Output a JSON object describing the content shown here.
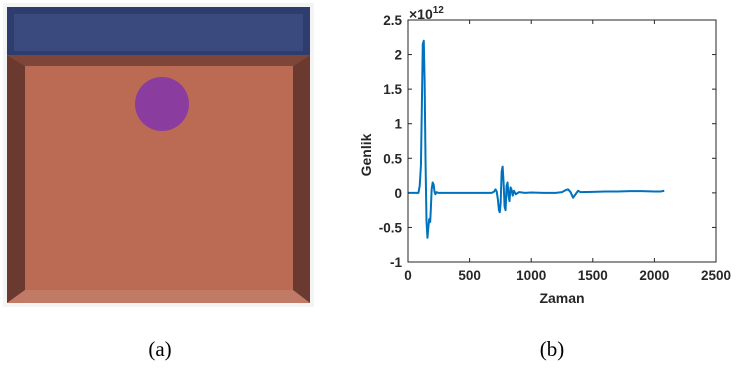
{
  "panel_a": {
    "caption": "(a)",
    "colors": {
      "frame": "#f4f4f4",
      "top_region": "#2f3d6e",
      "top_inner": "#3a4a7e",
      "body": "#b4664e",
      "body_inner": "#c77a5f",
      "edge_dark": "#6a3a30",
      "circle": "#8a3d9e"
    }
  },
  "panel_b": {
    "caption": "(b)",
    "chart_data": {
      "type": "line",
      "xlabel": "Zaman",
      "ylabel": "Genlik",
      "exponent_base": "×10",
      "exponent_power": "12",
      "xlim": [
        0,
        2500
      ],
      "ylim": [
        -1,
        2.5
      ],
      "xticks": [
        0,
        500,
        1000,
        1500,
        2000,
        2500
      ],
      "yticks": [
        -1,
        -0.5,
        0,
        0.5,
        1,
        1.5,
        2,
        2.5
      ],
      "line_color": "#0072bd",
      "series": [
        {
          "x": [
            0,
            60,
            85,
            95,
            105,
            112,
            120,
            128,
            135,
            142,
            150,
            158,
            165,
            172,
            180,
            185,
            192,
            200,
            208,
            215,
            222,
            232,
            245,
            280,
            400,
            500,
            600,
            650,
            680,
            700,
            710,
            720,
            730,
            738,
            745,
            752,
            760,
            768,
            776,
            784,
            792,
            800,
            808,
            816,
            824,
            832,
            840,
            850,
            860,
            875,
            900,
            950,
            1000,
            1100,
            1200,
            1250,
            1280,
            1300,
            1320,
            1340,
            1360,
            1380,
            1400,
            1500,
            1600,
            1700,
            1800,
            1900,
            2000,
            2050,
            2080
          ],
          "y": [
            0,
            0,
            0,
            0.1,
            0.4,
            1.2,
            2.15,
            2.2,
            1.6,
            0.5,
            -0.4,
            -0.65,
            -0.5,
            -0.38,
            -0.42,
            -0.25,
            0.05,
            0.15,
            0.12,
            0.02,
            -0.02,
            0.01,
            0,
            0,
            0,
            0,
            0,
            0,
            0,
            0.02,
            0.05,
            0.02,
            -0.1,
            -0.25,
            -0.28,
            -0.15,
            0.3,
            0.38,
            0.15,
            -0.2,
            -0.25,
            0.1,
            0.15,
            -0.05,
            -0.12,
            0.08,
            0.05,
            -0.04,
            0.03,
            -0.02,
            0.01,
            0,
            0.005,
            0,
            0,
            0.01,
            0.04,
            0.05,
            0.01,
            -0.07,
            -0.02,
            0.03,
            0.01,
            0.015,
            0.02,
            0.02,
            0.025,
            0.025,
            0.02,
            0.02,
            0.03
          ]
        }
      ]
    }
  }
}
